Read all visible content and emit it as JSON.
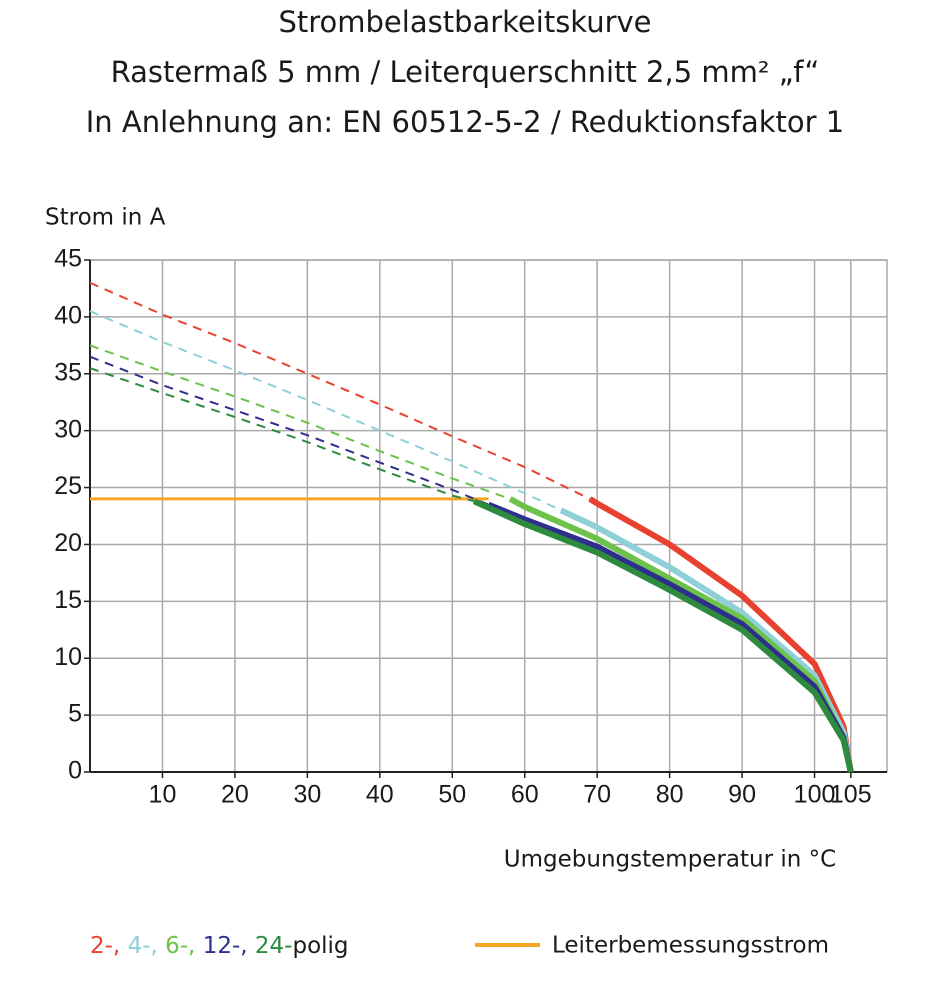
{
  "chart_data": {
    "type": "line",
    "title": [
      "Strombelastbarkeitskurve",
      "Rastermaß 5 mm / Leiterquerschnitt 2,5 mm² „f“",
      "In Anlehnung an: EN 60512-5-2 / Reduktionsfaktor 1"
    ],
    "y_label": "Strom in A",
    "x_label": "Umgebungstemperatur in °C",
    "xlim": [
      0,
      110
    ],
    "ylim": [
      0,
      45
    ],
    "xticks": [
      10,
      20,
      30,
      40,
      50,
      60,
      70,
      80,
      90,
      100,
      105
    ],
    "yticks": [
      0,
      5,
      10,
      15,
      20,
      25,
      30,
      35,
      40,
      45
    ],
    "grid": true,
    "legend_suffix": "polig",
    "series": [
      {
        "name": "2-,",
        "color": "#e8412f",
        "x_dashed": [
          0,
          10,
          20,
          30,
          40,
          50,
          60,
          69
        ],
        "values_dashed": [
          43,
          40.2,
          37.7,
          35,
          32.3,
          29.5,
          26.8,
          24
        ],
        "x": [
          69,
          70,
          80,
          90,
          100,
          104,
          105
        ],
        "values": [
          24,
          23.6,
          20,
          15.5,
          9.5,
          4,
          0
        ]
      },
      {
        "name": "4-,",
        "color": "#8fd0d8",
        "x_dashed": [
          0,
          10,
          20,
          30,
          40,
          50,
          60,
          65
        ],
        "values_dashed": [
          40.5,
          37.8,
          35.3,
          32.7,
          30,
          27.3,
          24.5,
          23
        ],
        "x": [
          65,
          70,
          80,
          90,
          100,
          104,
          105
        ],
        "values": [
          23,
          21.5,
          18,
          14,
          8.5,
          3.5,
          0
        ]
      },
      {
        "name": "6-,",
        "color": "#6cc24a",
        "x_dashed": [
          0,
          10,
          20,
          30,
          40,
          50,
          58
        ],
        "values_dashed": [
          37.5,
          35.2,
          33,
          30.7,
          28.2,
          25.8,
          24
        ],
        "x": [
          58,
          60,
          70,
          80,
          90,
          100,
          104,
          105
        ],
        "values": [
          24,
          23.3,
          20.5,
          17,
          13.5,
          8,
          3,
          0
        ]
      },
      {
        "name": "12-,",
        "color": "#2e2e8c",
        "x_dashed": [
          0,
          10,
          20,
          30,
          40,
          50,
          55
        ],
        "values_dashed": [
          36.5,
          34,
          31.8,
          29.6,
          27.2,
          24.8,
          23.5
        ],
        "x": [
          55,
          60,
          70,
          80,
          90,
          100,
          104,
          105
        ],
        "values": [
          23.5,
          22.2,
          19.8,
          16.5,
          13,
          7.5,
          3,
          0
        ]
      },
      {
        "name": "24-",
        "color": "#2e8b3e",
        "x_dashed": [
          0,
          10,
          20,
          30,
          40,
          50,
          53
        ],
        "values_dashed": [
          35.5,
          33.3,
          31.2,
          29,
          26.6,
          24.3,
          23.8
        ],
        "x": [
          53,
          60,
          70,
          80,
          90,
          100,
          104,
          105
        ],
        "values": [
          23.8,
          21.8,
          19.3,
          16,
          12.5,
          7,
          2.8,
          0
        ]
      }
    ],
    "reference": {
      "name": "Leiterbemessungsstrom",
      "color": "#f6a623",
      "x": [
        0,
        55
      ],
      "values": [
        24,
        24
      ]
    }
  }
}
